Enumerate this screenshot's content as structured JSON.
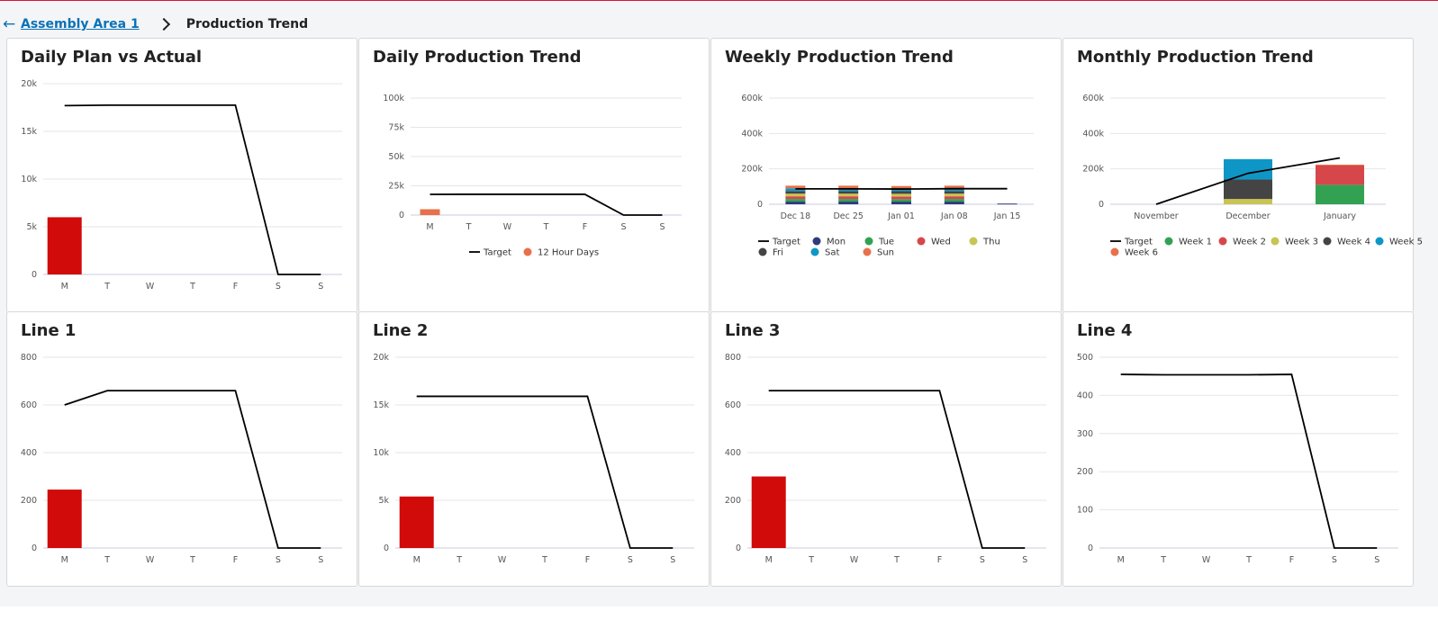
{
  "breadcrumb": {
    "back_icon": "arrow-left-icon",
    "parent": "Assembly Area 1",
    "separator_icon": "chevron-right-icon",
    "current": "Production Trend"
  },
  "days": [
    "M",
    "T",
    "W",
    "T",
    "F",
    "S",
    "S"
  ],
  "cards": [
    {
      "title": "Daily Plan vs Actual",
      "chart_data": {
        "type": "bar",
        "categories": [
          "M",
          "T",
          "W",
          "T",
          "F",
          "S",
          "S"
        ],
        "yticks": [
          0,
          5000,
          10000,
          15000,
          20000
        ],
        "ytick_labels": [
          "0",
          "5k",
          "10k",
          "15k",
          "20k"
        ],
        "ylim": [
          0,
          20000
        ],
        "series": [
          {
            "type": "bar",
            "color": "#d10a0a",
            "values": [
              6000,
              0,
              0,
              0,
              0,
              0,
              0
            ]
          },
          {
            "type": "line",
            "color": "#000000",
            "values": [
              17700,
              17750,
              17750,
              17750,
              17750,
              0,
              0
            ]
          }
        ]
      }
    },
    {
      "title": "Daily Production Trend",
      "chart_data": {
        "type": "bar",
        "categories": [
          "M",
          "T",
          "W",
          "T",
          "F",
          "S",
          "S"
        ],
        "yticks": [
          0,
          25000,
          50000,
          75000,
          100000
        ],
        "ytick_labels": [
          "0",
          "25k",
          "50k",
          "75k",
          "100k"
        ],
        "ylim": [
          0,
          100000
        ],
        "series": [
          {
            "name": "12 Hour Days",
            "type": "bar",
            "color": "#e8704a",
            "values": [
              5000,
              0,
              0,
              0,
              0,
              0,
              0
            ]
          },
          {
            "name": "Target",
            "type": "line",
            "color": "#000000",
            "values": [
              17700,
              17750,
              17750,
              17750,
              17750,
              0,
              0
            ]
          }
        ],
        "legend": [
          {
            "label": "Target",
            "marker": "line",
            "color": "#000000"
          },
          {
            "label": "12 Hour Days",
            "marker": "dot",
            "color": "#e8704a"
          }
        ]
      }
    },
    {
      "title": "Weekly Production Trend",
      "chart_data": {
        "type": "bar",
        "stacked": true,
        "categories": [
          "Dec 18",
          "Dec 25",
          "Jan 01",
          "Jan 08",
          "Jan 15"
        ],
        "yticks": [
          0,
          200000,
          400000,
          600000
        ],
        "ytick_labels": [
          "0",
          "200k",
          "400k",
          "600k"
        ],
        "ylim": [
          0,
          650000
        ],
        "series": [
          {
            "name": "Mon",
            "color": "#2e3a7c",
            "values": [
              15000,
              15000,
              15000,
              15000,
              4000
            ]
          },
          {
            "name": "Tue",
            "color": "#33a152",
            "values": [
              15000,
              15000,
              14000,
              15000,
              0
            ]
          },
          {
            "name": "Wed",
            "color": "#d6474b",
            "values": [
              15000,
              15000,
              15000,
              15000,
              0
            ]
          },
          {
            "name": "Thu",
            "color": "#c8c455",
            "values": [
              15000,
              15000,
              15000,
              15000,
              0
            ]
          },
          {
            "name": "Fri",
            "color": "#444444",
            "values": [
              15000,
              15000,
              15000,
              15000,
              0
            ]
          },
          {
            "name": "Sat",
            "color": "#0e96c6",
            "values": [
              15000,
              15000,
              14000,
              15000,
              0
            ]
          },
          {
            "name": "Sun",
            "color": "#e8704a",
            "values": [
              15000,
              15000,
              15000,
              15000,
              0
            ]
          },
          {
            "name": "Target",
            "type": "line",
            "color": "#000000",
            "values": [
              87000,
              87000,
              86000,
              88000,
              88000
            ]
          }
        ],
        "legend": [
          {
            "label": "Target",
            "marker": "line",
            "color": "#000000"
          },
          {
            "label": "Mon",
            "marker": "dot",
            "color": "#2e3a7c"
          },
          {
            "label": "Tue",
            "marker": "dot",
            "color": "#33a152"
          },
          {
            "label": "Wed",
            "marker": "dot",
            "color": "#d6474b"
          },
          {
            "label": "Thu",
            "marker": "dot",
            "color": "#c8c455"
          },
          {
            "label": "Fri",
            "marker": "dot",
            "color": "#444444"
          },
          {
            "label": "Sat",
            "marker": "dot",
            "color": "#0e96c6"
          },
          {
            "label": "Sun",
            "marker": "dot",
            "color": "#e8704a"
          }
        ]
      }
    },
    {
      "title": "Monthly Production Trend",
      "chart_data": {
        "type": "bar",
        "stacked": true,
        "categories": [
          "November",
          "December",
          "January"
        ],
        "yticks": [
          0,
          200000,
          400000,
          600000
        ],
        "ytick_labels": [
          "0",
          "200k",
          "400k",
          "600k"
        ],
        "ylim": [
          0,
          650000
        ],
        "series": [
          {
            "name": "Week 3",
            "color": "#c8c455",
            "values": [
              0,
              30000,
              0
            ]
          },
          {
            "name": "Week 4",
            "color": "#444444",
            "values": [
              0,
              110000,
              0
            ]
          },
          {
            "name": "Week 5",
            "color": "#0e96c6",
            "values": [
              0,
              115000,
              0
            ]
          },
          {
            "name": "Week 1",
            "color": "#33a152",
            "values": [
              0,
              0,
              110000
            ]
          },
          {
            "name": "Week 2",
            "color": "#d6474b",
            "values": [
              0,
              0,
              110000
            ]
          },
          {
            "name": "Week 6",
            "color": "#e8704a",
            "values": [
              0,
              0,
              4000
            ]
          },
          {
            "name": "Target",
            "type": "line",
            "color": "#000000",
            "values": [
              0,
              175000,
              262000
            ]
          }
        ],
        "legend": [
          {
            "label": "Target",
            "marker": "line",
            "color": "#000000"
          },
          {
            "label": "Week 1",
            "marker": "dot",
            "color": "#33a152"
          },
          {
            "label": "Week 2",
            "marker": "dot",
            "color": "#d6474b"
          },
          {
            "label": "Week 3",
            "marker": "dot",
            "color": "#c8c455"
          },
          {
            "label": "Week 4",
            "marker": "dot",
            "color": "#444444"
          },
          {
            "label": "Week 5",
            "marker": "dot",
            "color": "#0e96c6"
          },
          {
            "label": "Week 6",
            "marker": "dot",
            "color": "#e8704a"
          }
        ]
      }
    },
    {
      "title": "Line 1",
      "chart_data": {
        "type": "bar",
        "categories": [
          "M",
          "T",
          "W",
          "T",
          "F",
          "S",
          "S"
        ],
        "yticks": [
          0,
          200,
          400,
          600,
          800
        ],
        "ytick_labels": [
          "0",
          "200",
          "400",
          "600",
          "800"
        ],
        "ylim": [
          0,
          800
        ],
        "series": [
          {
            "type": "bar",
            "color": "#d10a0a",
            "values": [
              245,
              0,
              0,
              0,
              0,
              0,
              0
            ]
          },
          {
            "type": "line",
            "color": "#000000",
            "values": [
              600,
              660,
              660,
              660,
              660,
              0,
              0
            ]
          }
        ]
      }
    },
    {
      "title": "Line 2",
      "chart_data": {
        "type": "bar",
        "categories": [
          "M",
          "T",
          "W",
          "T",
          "F",
          "S",
          "S"
        ],
        "yticks": [
          0,
          5000,
          10000,
          15000,
          20000
        ],
        "ytick_labels": [
          "0",
          "5k",
          "10k",
          "15k",
          "20k"
        ],
        "ylim": [
          0,
          20000
        ],
        "series": [
          {
            "type": "bar",
            "color": "#d10a0a",
            "values": [
              5400,
              0,
              0,
              0,
              0,
              0,
              0
            ]
          },
          {
            "type": "line",
            "color": "#000000",
            "values": [
              15900,
              15900,
              15900,
              15900,
              15900,
              0,
              0
            ]
          }
        ]
      }
    },
    {
      "title": "Line 3",
      "chart_data": {
        "type": "bar",
        "categories": [
          "M",
          "T",
          "W",
          "T",
          "F",
          "S",
          "S"
        ],
        "yticks": [
          0,
          200,
          400,
          600,
          800
        ],
        "ytick_labels": [
          "0",
          "200",
          "400",
          "600",
          "800"
        ],
        "ylim": [
          0,
          800
        ],
        "series": [
          {
            "type": "bar",
            "color": "#d10a0a",
            "values": [
              300,
              0,
              0,
              0,
              0,
              0,
              0
            ]
          },
          {
            "type": "line",
            "color": "#000000",
            "values": [
              660,
              660,
              660,
              660,
              660,
              0,
              0
            ]
          }
        ]
      }
    },
    {
      "title": "Line 4",
      "chart_data": {
        "type": "line",
        "categories": [
          "M",
          "T",
          "W",
          "T",
          "F",
          "S",
          "S"
        ],
        "yticks": [
          0,
          100,
          200,
          300,
          400,
          500
        ],
        "ytick_labels": [
          "0",
          "100",
          "200",
          "300",
          "400",
          "500"
        ],
        "ylim": [
          0,
          500
        ],
        "series": [
          {
            "type": "line",
            "color": "#000000",
            "values": [
              455,
              454,
              454,
              454,
              455,
              0,
              0
            ]
          }
        ]
      }
    }
  ]
}
